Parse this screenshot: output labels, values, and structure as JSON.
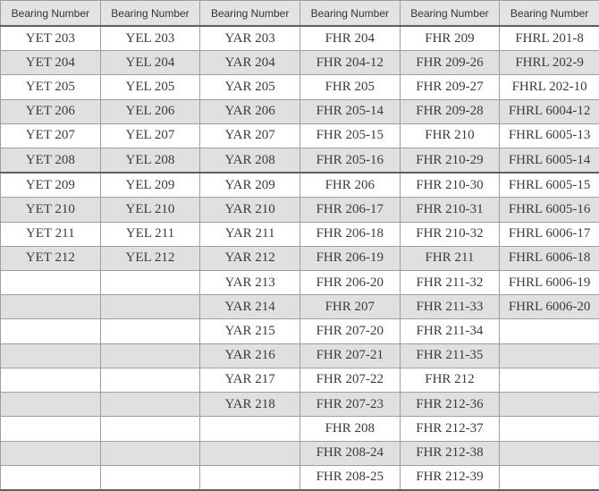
{
  "table": {
    "column_headers": [
      "Bearing Number",
      "Bearing Number",
      "Bearing Number",
      "Bearing Number",
      "Bearing Number",
      "Bearing Number"
    ],
    "rows": [
      [
        "YET 203",
        "YEL 203",
        "YAR 203",
        "FHR 204",
        "FHR 209",
        "FHRL 201-8"
      ],
      [
        "YET 204",
        "YEL 204",
        "YAR 204",
        "FHR 204-12",
        "FHR 209-26",
        "FHRL 202-9"
      ],
      [
        "YET 205",
        "YEL 205",
        "YAR 205",
        "FHR 205",
        "FHR 209-27",
        "FHRL 202-10"
      ],
      [
        "YET 206",
        "YEL 206",
        "YAR 206",
        "FHR 205-14",
        "FHR 209-28",
        "FHRL 6004-12"
      ],
      [
        "YET 207",
        "YEL 207",
        "YAR 207",
        "FHR 205-15",
        "FHR 210",
        "FHRL 6005-13"
      ],
      [
        "YET 208",
        "YEL 208",
        "YAR 208",
        "FHR 205-16",
        "FHR 210-29",
        "FHRL 6005-14"
      ],
      [
        "YET 209",
        "YEL 209",
        "YAR 209",
        "FHR 206",
        "FHR 210-30",
        "FHRL 6005-15"
      ],
      [
        "YET 210",
        "YEL 210",
        "YAR 210",
        "FHR 206-17",
        "FHR 210-31",
        "FHRL 6005-16"
      ],
      [
        "YET 211",
        "YEL 211",
        "YAR 211",
        "FHR 206-18",
        "FHR 210-32",
        "FHRL 6006-17"
      ],
      [
        "YET 212",
        "YEL 212",
        "YAR 212",
        "FHR 206-19",
        "FHR 211",
        "FHRL 6006-18"
      ],
      [
        "",
        "",
        "YAR 213",
        "FHR 206-20",
        "FHR 211-32",
        "FHRL 6006-19"
      ],
      [
        "",
        "",
        "YAR 214",
        "FHR 207",
        "FHR 211-33",
        "FHRL 6006-20"
      ],
      [
        "",
        "",
        "YAR 215",
        "FHR 207-20",
        "FHR 211-34",
        ""
      ],
      [
        "",
        "",
        "YAR 216",
        "FHR 207-21",
        "FHR 211-35",
        ""
      ],
      [
        "",
        "",
        "YAR 217",
        "FHR 207-22",
        "FHR 212",
        ""
      ],
      [
        "",
        "",
        "YAR 218",
        "FHR 207-23",
        "FHR 212-36",
        ""
      ],
      [
        "",
        "",
        "",
        "FHR 208",
        "FHR 212-37",
        ""
      ],
      [
        "",
        "",
        "",
        "FHR 208-24",
        "FHR 212-38",
        ""
      ],
      [
        "",
        "",
        "",
        "FHR 208-25",
        "FHR 212-39",
        ""
      ]
    ],
    "section_end_row_index": 5
  },
  "colors": {
    "header_bg": "#e3e3e3",
    "row_alt_bg": "#e0e0e0",
    "row_bg": "#ffffff",
    "border": "#9e9e9e",
    "border_dark": "#5f5f5f",
    "text": "#3b3b3b"
  }
}
